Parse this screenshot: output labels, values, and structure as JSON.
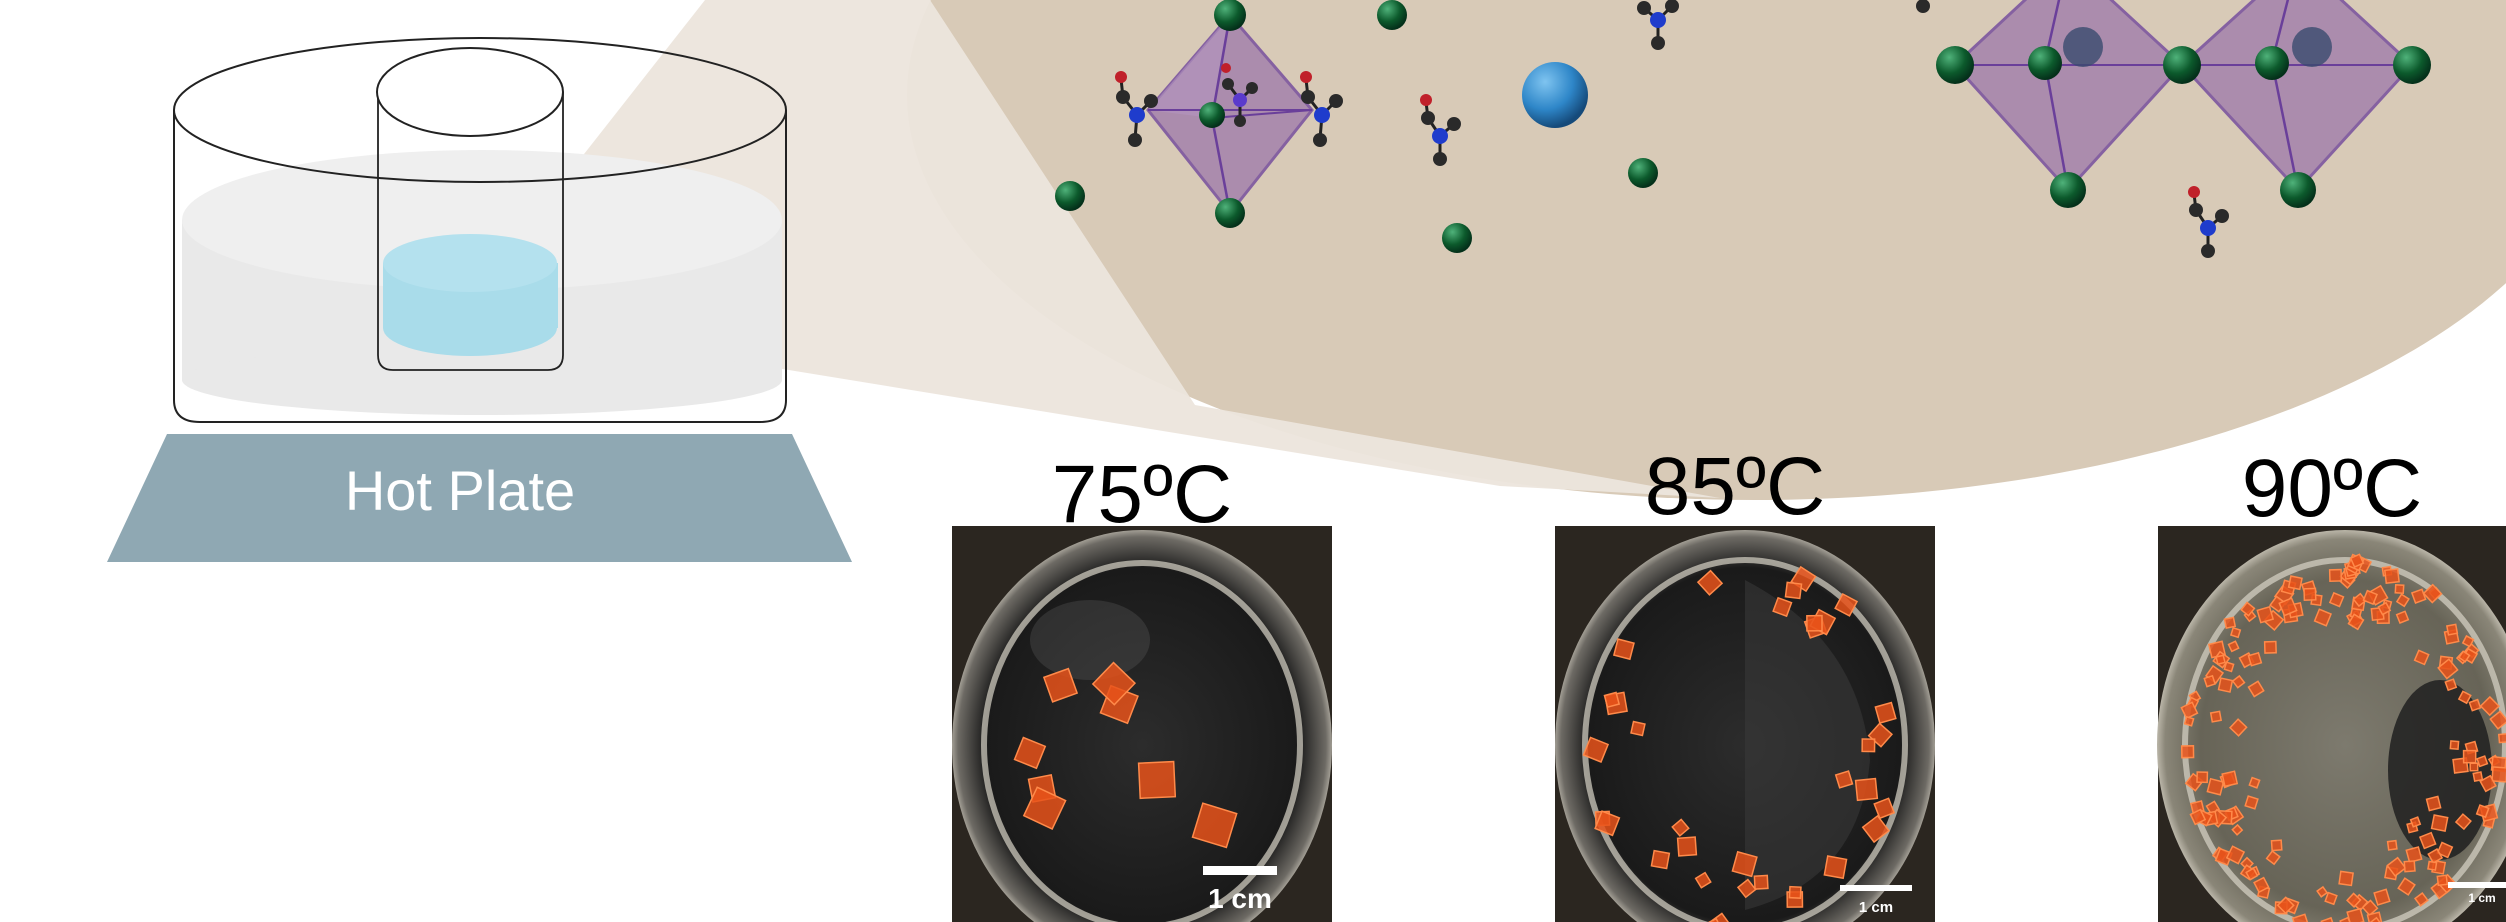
{
  "figure": {
    "hot_plate_label": "Hot Plate",
    "samples": [
      {
        "temperature_label": "75ºC",
        "scale_bar_label": "1 cm",
        "crystal_count": 8
      },
      {
        "temperature_label": "85ºC",
        "scale_bar_label": "1 cm",
        "crystal_count": 34
      },
      {
        "temperature_label": "90ºC",
        "scale_bar_label": "1 cm",
        "crystal_count": 160
      }
    ]
  },
  "colors": {
    "hot_plate": "#8fa8b3",
    "bath_water": "#e9e9e9",
    "solution": "#a9dcea",
    "zoom_background": "#d8cab7",
    "zoom_cone": "#ece5dc",
    "octahedron": "#9c78aa",
    "octahedron_edge": "#6a3f9a",
    "halide_atom": "#0c5a2c",
    "nitrogen_atom": "#1f3ccc",
    "carbon_atom": "#2a2a2a",
    "oxygen_atom": "#c0202a",
    "metal_atom": "#2e86c8",
    "crystal": "#e8521a",
    "vial_dark": "#1f1f1f"
  },
  "icons": {
    "molecule": "ammonium-cation-icon",
    "atom": "halide-atom-icon"
  }
}
